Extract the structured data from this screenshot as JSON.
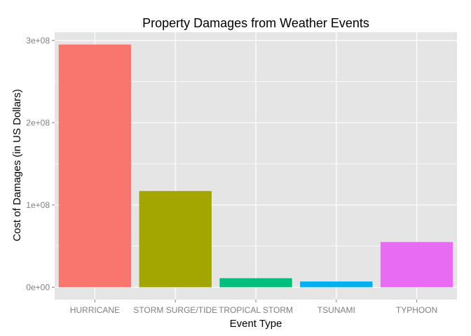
{
  "chart_data": {
    "type": "bar",
    "title": "Property Damages from Weather Events",
    "xlabel": "Event Type",
    "ylabel": "Cost of Damages (in US Dollars)",
    "categories": [
      "HURRICANE",
      "STORM SURGE/TIDE",
      "TROPICAL STORM",
      "TSUNAMI",
      "TYPHOON"
    ],
    "values": [
      295000000,
      117000000,
      11000000,
      7000000,
      55000000
    ],
    "colors": [
      "#F8766D",
      "#A3A500",
      "#00BF7D",
      "#00B0F6",
      "#E76BF3"
    ],
    "ylim": [
      -15000000,
      310000000
    ],
    "yticks": [
      0,
      100000000,
      200000000,
      300000000
    ],
    "ytick_labels": [
      "0e+00",
      "1e+08",
      "2e+08",
      "3e+08"
    ],
    "grid": true,
    "legend": "none",
    "panel_background": "#E5E5E5",
    "grid_color": "#FFFFFF"
  }
}
